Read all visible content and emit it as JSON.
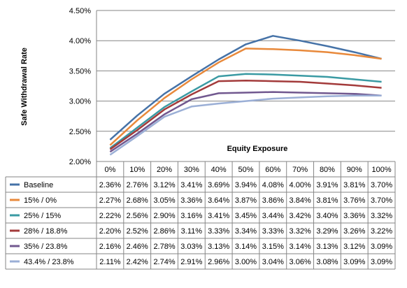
{
  "chart_data": {
    "type": "line",
    "title": "",
    "xlabel": "Equity Exposure",
    "ylabel": "Safe Withdrawal Rate",
    "ylim": [
      2.0,
      4.5
    ],
    "y_ticks": [
      "2.00%",
      "2.50%",
      "3.00%",
      "3.50%",
      "4.00%",
      "4.50%"
    ],
    "y_tick_values": [
      2.0,
      2.5,
      3.0,
      3.5,
      4.0,
      4.5
    ],
    "grid": true,
    "legend": "data-table",
    "categories": [
      "0%",
      "10%",
      "20%",
      "30%",
      "40%",
      "50%",
      "60%",
      "70%",
      "80%",
      "90%",
      "100%"
    ],
    "series": [
      {
        "name": "Baseline",
        "color": "#4572A7",
        "values": [
          2.36,
          2.76,
          3.12,
          3.41,
          3.69,
          3.94,
          4.08,
          4.0,
          3.91,
          3.81,
          3.7
        ],
        "labels": [
          "2.36%",
          "2.76%",
          "3.12%",
          "3.41%",
          "3.69%",
          "3.94%",
          "4.08%",
          "4.00%",
          "3.91%",
          "3.81%",
          "3.70%"
        ]
      },
      {
        "name": "15% / 0%",
        "color": "#E8893B",
        "values": [
          2.27,
          2.68,
          3.05,
          3.36,
          3.64,
          3.87,
          3.86,
          3.84,
          3.81,
          3.76,
          3.7
        ],
        "labels": [
          "2.27%",
          "2.68%",
          "3.05%",
          "3.36%",
          "3.64%",
          "3.87%",
          "3.86%",
          "3.84%",
          "3.81%",
          "3.76%",
          "3.70%"
        ]
      },
      {
        "name": "25% / 15%",
        "color": "#3A9AA3",
        "values": [
          2.22,
          2.56,
          2.9,
          3.16,
          3.41,
          3.45,
          3.44,
          3.42,
          3.4,
          3.36,
          3.32
        ],
        "labels": [
          "2.22%",
          "2.56%",
          "2.90%",
          "3.16%",
          "3.41%",
          "3.45%",
          "3.44%",
          "3.42%",
          "3.40%",
          "3.36%",
          "3.32%"
        ]
      },
      {
        "name": "28% / 18.8%",
        "color": "#A33B3B",
        "values": [
          2.2,
          2.52,
          2.86,
          3.11,
          3.33,
          3.34,
          3.33,
          3.32,
          3.29,
          3.26,
          3.22
        ],
        "labels": [
          "2.20%",
          "2.52%",
          "2.86%",
          "3.11%",
          "3.33%",
          "3.34%",
          "3.33%",
          "3.32%",
          "3.29%",
          "3.26%",
          "3.22%"
        ]
      },
      {
        "name": "35% / 23.8%",
        "color": "#71588F",
        "values": [
          2.16,
          2.46,
          2.78,
          3.03,
          3.13,
          3.14,
          3.15,
          3.14,
          3.13,
          3.12,
          3.09
        ],
        "labels": [
          "2.16%",
          "2.46%",
          "2.78%",
          "3.03%",
          "3.13%",
          "3.14%",
          "3.15%",
          "3.14%",
          "3.13%",
          "3.12%",
          "3.09%"
        ]
      },
      {
        "name": "43.4% / 23.8%",
        "color": "#9BAFD6",
        "values": [
          2.11,
          2.42,
          2.74,
          2.91,
          2.96,
          3.0,
          3.04,
          3.06,
          3.08,
          3.09,
          3.09
        ],
        "labels": [
          "2.11%",
          "2.42%",
          "2.74%",
          "2.91%",
          "2.96%",
          "3.00%",
          "3.04%",
          "3.06%",
          "3.08%",
          "3.09%",
          "3.09%"
        ]
      }
    ]
  }
}
